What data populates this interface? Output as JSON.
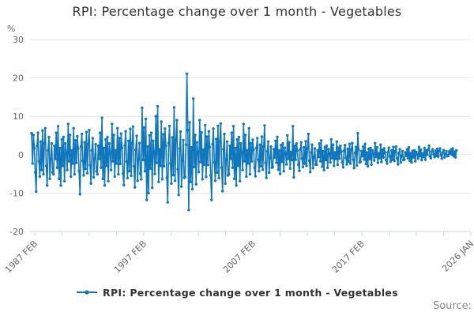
{
  "title": "RPI: Percentage change over 1 month - Vegetables",
  "legend": {
    "label": "RPI: Percentage change over 1 month - Vegetables"
  },
  "source_label": "Source:",
  "y_axis": {
    "unit_label": "%",
    "tick_labels": [
      "30",
      "20",
      "10",
      "0",
      "-10",
      "-20"
    ],
    "tick_values": [
      30,
      20,
      10,
      0,
      -10,
      -20
    ]
  },
  "x_axis": {
    "major_labels": [
      "1987 FEB",
      "1997 FEB",
      "2007 FEB",
      "2017 FEB",
      "2026 JAN"
    ],
    "minor_tick_count": 17
  },
  "colors": {
    "line": "#1077bd",
    "grid": "#e6e6e6",
    "axis": "#ccd6eb",
    "title_text": "#333333",
    "tick_text": "#666666",
    "source_text": "#888888"
  },
  "chart_data": {
    "type": "line",
    "title": "RPI: Percentage change over 1 month - Vegetables",
    "series_name": "RPI: Percentage change over 1 month - Vegetables",
    "xlabel": "",
    "ylabel": "%",
    "ylim": [
      -20,
      30
    ],
    "x_start": "1987-02",
    "x_end": "2025-11",
    "frequency": "monthly",
    "grid": "horizontal",
    "legend_position": "bottom-center",
    "markers": true,
    "values": [
      5.6,
      -2.3,
      5.1,
      1.7,
      -4.6,
      -9.6,
      2.3,
      5.7,
      -1.7,
      -5.7,
      3.4,
      -4.0,
      6.3,
      -5.1,
      2.9,
      6.9,
      -2.9,
      -8.0,
      1.1,
      4.6,
      -6.3,
      -1.1,
      2.9,
      -4.6,
      -5.1,
      2.3,
      -1.1,
      5.7,
      -3.4,
      7.4,
      -6.3,
      1.7,
      -8.0,
      4.0,
      -2.9,
      4.6,
      -6.9,
      2.9,
      0.6,
      -4.0,
      8.0,
      -1.7,
      5.1,
      -5.7,
      1.1,
      -2.3,
      6.9,
      -5.1,
      3.7,
      -2.1,
      4.8,
      1.6,
      -4.3,
      -10.3,
      2.1,
      5.4,
      -1.6,
      -5.4,
      3.2,
      -3.7,
      5.9,
      -4.8,
      2.7,
      6.4,
      -2.7,
      -7.5,
      1.1,
      4.3,
      -5.9,
      -1.1,
      2.7,
      -4.3,
      -5.1,
      2.3,
      -1.1,
      5.7,
      -3.4,
      9.6,
      -6.3,
      1.7,
      -8.0,
      4.0,
      -2.9,
      4.6,
      -6.9,
      2.9,
      0.6,
      -4.0,
      8.0,
      -1.7,
      5.1,
      -5.7,
      1.1,
      -2.3,
      6.9,
      -5.1,
      4.3,
      -2.4,
      5.5,
      1.8,
      -4.9,
      -7.9,
      2.4,
      6.1,
      -1.8,
      -6.1,
      3.6,
      -4.3,
      6.7,
      -5.5,
      3.0,
      7.3,
      -3.0,
      -8.5,
      1.2,
      4.9,
      -6.8,
      -1.2,
      3.0,
      -4.9,
      -6.4,
      12.2,
      -1.4,
      7.1,
      -4.3,
      9.3,
      -11.8,
      2.1,
      -10.0,
      5.0,
      -3.6,
      5.7,
      -8.6,
      3.6,
      0.7,
      -5.0,
      10.0,
      -2.1,
      12.6,
      -7.1,
      1.4,
      -2.9,
      8.6,
      -6.4,
      5.3,
      -3.0,
      6.8,
      2.3,
      -6.0,
      -12.4,
      3.0,
      7.5,
      -2.3,
      -7.5,
      4.5,
      -5.3,
      12.3,
      -6.8,
      3.8,
      9.0,
      -3.8,
      -10.5,
      1.5,
      6.0,
      -8.3,
      -1.5,
      3.8,
      -6.0,
      -5.8,
      2.6,
      21.1,
      6.4,
      -14.4,
      8.4,
      -7.1,
      1.9,
      -9.0,
      14.6,
      -3.2,
      5.1,
      -7.7,
      3.2,
      0.6,
      -4.5,
      9.0,
      -1.9,
      5.8,
      -6.4,
      1.3,
      -2.6,
      7.7,
      -5.8,
      4.7,
      -2.7,
      6.1,
      2.0,
      -5.4,
      -11.8,
      2.7,
      6.8,
      -2.0,
      -6.8,
      4.1,
      -4.7,
      7.5,
      -6.1,
      3.4,
      8.1,
      -3.4,
      -9.5,
      1.4,
      5.4,
      -7.5,
      -1.4,
      3.4,
      -5.4,
      -5.1,
      2.3,
      -1.1,
      5.7,
      -3.4,
      7.4,
      -6.3,
      1.7,
      -8.0,
      4.0,
      -2.9,
      4.6,
      -6.9,
      2.9,
      0.6,
      -4.0,
      8.0,
      -1.7,
      5.1,
      -5.7,
      1.1,
      -2.3,
      6.9,
      -5.1,
      3.0,
      -1.7,
      3.9,
      1.3,
      -3.4,
      -5.6,
      1.7,
      4.3,
      -1.3,
      -4.3,
      2.6,
      -3.0,
      4.7,
      -3.9,
      2.1,
      7.6,
      -2.1,
      -6.0,
      0.9,
      3.4,
      -4.7,
      -0.9,
      2.1,
      -3.4,
      -3.2,
      1.4,
      -0.7,
      3.6,
      -2.1,
      4.6,
      -3.9,
      1.1,
      -5.0,
      2.5,
      -1.8,
      2.9,
      -4.3,
      1.8,
      0.4,
      -2.5,
      5.0,
      -1.1,
      3.2,
      -3.6,
      0.7,
      -1.4,
      7.4,
      -5.9,
      2.3,
      -1.3,
      2.9,
      1.0,
      -2.6,
      -4.2,
      1.3,
      3.2,
      -1.0,
      -3.2,
      1.9,
      -2.3,
      3.5,
      -2.9,
      1.6,
      5.4,
      -1.6,
      -4.5,
      0.6,
      2.6,
      -3.5,
      -0.6,
      1.6,
      -2.6,
      -2.6,
      1.1,
      -0.6,
      2.9,
      -1.7,
      3.7,
      -3.1,
      0.9,
      -4.0,
      2.0,
      -1.4,
      2.3,
      -3.4,
      1.4,
      0.3,
      -2.0,
      4.0,
      -0.9,
      2.6,
      -2.9,
      0.6,
      -1.1,
      3.4,
      -2.6,
      1.8,
      -1.0,
      2.3,
      0.8,
      -2.0,
      -3.3,
      1.0,
      2.5,
      -0.8,
      -2.5,
      1.5,
      -1.8,
      2.8,
      -2.3,
      1.3,
      3.0,
      -1.3,
      -3.5,
      0.5,
      2.0,
      -2.8,
      5.6,
      1.3,
      -2.0,
      -1.9,
      0.9,
      -0.4,
      2.1,
      -1.3,
      2.8,
      -2.4,
      0.6,
      -3.0,
      1.5,
      -1.1,
      1.7,
      -2.6,
      1.1,
      0.2,
      -1.5,
      3.0,
      -0.6,
      1.9,
      -2.1,
      0.4,
      -0.9,
      2.6,
      -1.9,
      1.3,
      -0.7,
      1.6,
      0.5,
      -1.4,
      -2.3,
      0.7,
      1.8,
      -0.5,
      -1.8,
      1.1,
      -1.3,
      2.0,
      -1.6,
      0.9,
      2.1,
      -0.9,
      -2.5,
      0.4,
      1.4,
      -2.0,
      -0.4,
      0.9,
      -1.4,
      -1.3,
      0.6,
      -0.3,
      1.4,
      -0.9,
      1.9,
      -1.6,
      0.4,
      -2.0,
      1.0,
      -0.7,
      1.1,
      -1.7,
      0.7,
      0.1,
      -1.0,
      2.0,
      -0.4,
      1.3,
      -1.4,
      0.3,
      -0.6,
      1.7,
      -1.3,
      1.1,
      0.0,
      1.3,
      2.3,
      -0.4,
      -0.9,
      0.8,
      1.4,
      0.1,
      -0.6,
      1.0,
      -0.3,
      1.5,
      -0.5,
      0.9,
      1.6,
      -0.1,
      -1.0,
      0.6,
      1.2,
      -0.7,
      0.2,
      0.9,
      -0.4,
      -0.3,
      0.8,
      0.3,
      1.3,
      0.0,
      1.6,
      -0.4,
      0.8,
      -0.7,
      1.1
    ]
  }
}
